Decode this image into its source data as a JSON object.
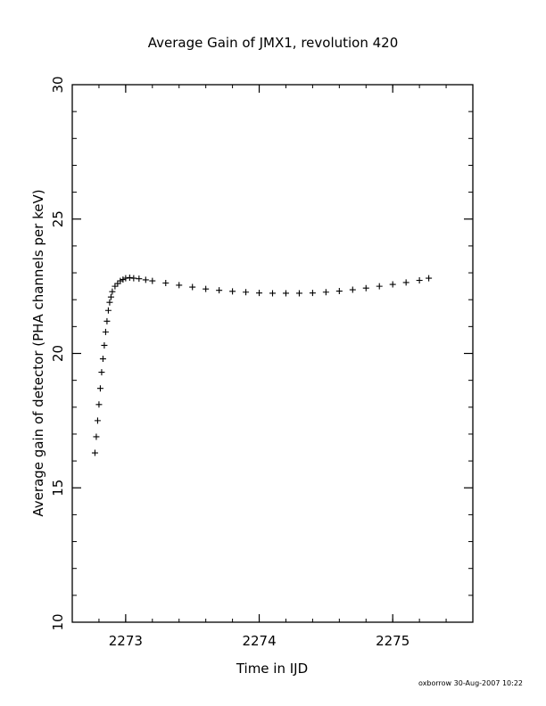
{
  "chart_data": {
    "type": "scatter",
    "title": "Average Gain of JMX1, revolution 420",
    "xlabel": "Time in IJD",
    "ylabel": "Average gain of detector (PHA channels per keV)",
    "xlim": [
      2272.6,
      2275.6
    ],
    "ylim": [
      10,
      30
    ],
    "x_ticks": [
      2273,
      2274,
      2275
    ],
    "x_tick_labels": [
      "2273",
      "2274",
      "2275"
    ],
    "y_ticks": [
      10,
      15,
      20,
      25,
      30
    ],
    "y_tick_labels": [
      "10",
      "15",
      "20",
      "25",
      "30"
    ],
    "marker": "plus",
    "grid": false,
    "legend": "none",
    "series": [
      {
        "x": [
          2272.77,
          2272.78,
          2272.79,
          2272.8,
          2272.81,
          2272.82,
          2272.83,
          2272.84,
          2272.85,
          2272.86,
          2272.87,
          2272.88,
          2272.89,
          2272.9,
          2272.92,
          2272.94,
          2272.96,
          2272.98,
          2273.0,
          2273.03,
          2273.06,
          2273.1,
          2273.15,
          2273.2,
          2273.3,
          2273.4,
          2273.5,
          2273.6,
          2273.7,
          2273.8,
          2273.9,
          2274.0,
          2274.1,
          2274.2,
          2274.3,
          2274.4,
          2274.5,
          2274.6,
          2274.7,
          2274.8,
          2274.9,
          2275.0,
          2275.1,
          2275.2,
          2275.27
        ],
        "y": [
          16.3,
          16.9,
          17.5,
          18.1,
          18.7,
          19.3,
          19.8,
          20.3,
          20.8,
          21.2,
          21.6,
          21.9,
          22.1,
          22.3,
          22.5,
          22.6,
          22.7,
          22.75,
          22.8,
          22.82,
          22.8,
          22.78,
          22.74,
          22.7,
          22.62,
          22.54,
          22.47,
          22.4,
          22.35,
          22.31,
          22.28,
          22.25,
          22.24,
          22.24,
          22.24,
          22.25,
          22.28,
          22.32,
          22.37,
          22.43,
          22.5,
          22.57,
          22.64,
          22.72,
          22.8
        ]
      }
    ]
  },
  "footer": {
    "credit": "oxborrow 30-Aug-2007 10:22"
  }
}
